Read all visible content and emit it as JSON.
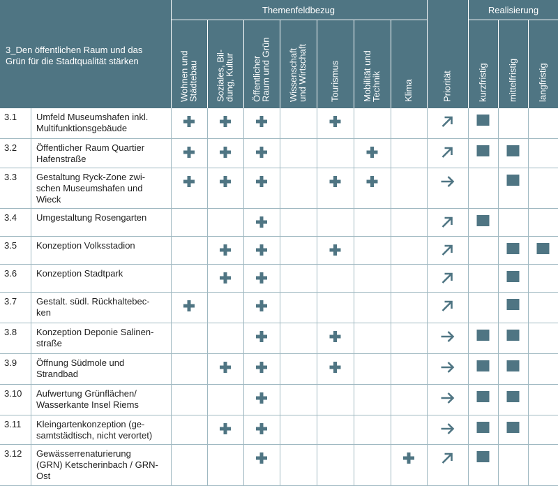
{
  "colors": {
    "header": "#4f7583",
    "mark": "#4f7583",
    "rule": "#9fb8c1",
    "text": "#1f1f1f"
  },
  "header": {
    "title": "3_Den öffentlichen Raum und das Grün für die Stadtqualität stärken",
    "group_themen": "Themenfeldbezug",
    "group_real": "Realisierung",
    "themen_cols": [
      [
        "Wohnen und",
        "Städtebau"
      ],
      [
        "Soziales, Bil-",
        "dung, Kultur"
      ],
      [
        "Öffentlicher",
        "Raum und Grün"
      ],
      [
        "Wissenschaft",
        "und Wirtschaft"
      ],
      [
        "Tourismus"
      ],
      [
        "Mobilität und",
        "Technik"
      ],
      [
        "Klima"
      ]
    ],
    "prio_col": "Priorität",
    "real_cols": [
      "kurzfristig",
      "mittelfristig",
      "langfristig"
    ]
  },
  "rows": [
    {
      "num": "3.1",
      "label": [
        "Umfeld Museumshafen inkl.",
        "Multifunktionsgebäude"
      ],
      "themen": [
        1,
        1,
        1,
        0,
        1,
        0,
        0
      ],
      "prio": "up",
      "real": [
        1,
        0,
        0
      ]
    },
    {
      "num": "3.2",
      "label": [
        "Öffentlicher Raum Quartier",
        "Hafenstraße"
      ],
      "themen": [
        1,
        1,
        1,
        0,
        0,
        1,
        0
      ],
      "prio": "up",
      "real": [
        1,
        1,
        0
      ]
    },
    {
      "num": "3.3",
      "label": [
        "Gestaltung Ryck-Zone zwi-",
        "schen Museumshafen und",
        "Wieck"
      ],
      "themen": [
        1,
        1,
        1,
        0,
        1,
        1,
        0
      ],
      "prio": "right",
      "real": [
        0,
        1,
        0
      ]
    },
    {
      "num": "3.4",
      "label": [
        "Umgestaltung Rosengarten"
      ],
      "themen": [
        0,
        0,
        1,
        0,
        0,
        0,
        0
      ],
      "prio": "up",
      "real": [
        1,
        0,
        0
      ]
    },
    {
      "num": "3.5",
      "label": [
        "Konzeption Volksstadion"
      ],
      "themen": [
        0,
        1,
        1,
        0,
        1,
        0,
        0
      ],
      "prio": "up",
      "real": [
        0,
        1,
        1
      ]
    },
    {
      "num": "3.6",
      "label": [
        "Konzeption Stadtpark"
      ],
      "themen": [
        0,
        1,
        1,
        0,
        0,
        0,
        0
      ],
      "prio": "up",
      "real": [
        0,
        1,
        0
      ]
    },
    {
      "num": "3.7",
      "label": [
        "Gestalt. südl. Rückhaltebec-",
        "ken"
      ],
      "themen": [
        1,
        0,
        1,
        0,
        0,
        0,
        0
      ],
      "prio": "up",
      "real": [
        0,
        1,
        0
      ]
    },
    {
      "num": "3.8",
      "label": [
        "Konzeption Deponie Salinen-",
        "straße"
      ],
      "themen": [
        0,
        0,
        1,
        0,
        1,
        0,
        0
      ],
      "prio": "right",
      "real": [
        1,
        1,
        0
      ]
    },
    {
      "num": "3.9",
      "label": [
        "Öffnung Südmole und",
        "Strandbad"
      ],
      "themen": [
        0,
        1,
        1,
        0,
        1,
        0,
        0
      ],
      "prio": "right",
      "real": [
        1,
        1,
        0
      ]
    },
    {
      "num": "3.10",
      "label": [
        "Aufwertung Grünflächen/",
        "Wasserkante Insel Riems"
      ],
      "themen": [
        0,
        0,
        1,
        0,
        0,
        0,
        0
      ],
      "prio": "right",
      "real": [
        1,
        1,
        0
      ]
    },
    {
      "num": "3.11",
      "label": [
        "Kleingartenkonzeption  (ge-",
        "samtstädtisch, nicht verortet)"
      ],
      "themen": [
        0,
        1,
        1,
        0,
        0,
        0,
        0
      ],
      "prio": "right",
      "real": [
        1,
        1,
        0
      ]
    },
    {
      "num": "3.12",
      "label": [
        "Gewässerrenaturierung",
        "(GRN) Ketscherinbach / GRN-",
        "Ost"
      ],
      "themen": [
        0,
        0,
        1,
        0,
        0,
        0,
        1
      ],
      "prio": "up",
      "real": [
        1,
        0,
        0
      ]
    }
  ]
}
